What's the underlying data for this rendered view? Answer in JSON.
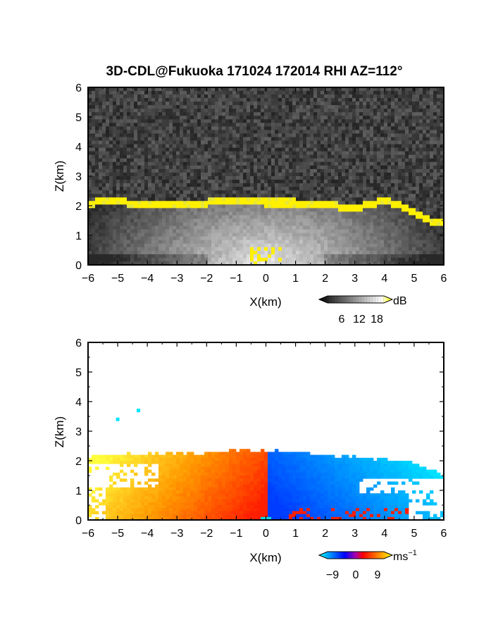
{
  "title": "3D-CDL@Fukuoka 171024 172014 RHI AZ=112°",
  "chart_data": [
    {
      "type": "heatmap",
      "field": "backscatter",
      "xlabel": "X(km)",
      "ylabel": "Z(km)",
      "xlim": [
        -6,
        6
      ],
      "ylim": [
        0,
        6
      ],
      "x_ticks": [
        "-6",
        "-5",
        "-4",
        "-3",
        "-2",
        "-1",
        "0",
        "1",
        "2",
        "3",
        "4",
        "5",
        "6"
      ],
      "y_ticks": [
        "0",
        "1",
        "2",
        "3",
        "4",
        "5",
        "6"
      ],
      "colorbar": {
        "unit": "dB",
        "ticks": [
          "6",
          "12",
          "18"
        ],
        "range": [
          0,
          20
        ],
        "colors": [
          "#000000",
          "#ffffff",
          "#ffff00"
        ]
      },
      "features": {
        "high_return_layer_top_km": [
          [
            -6,
            2.05
          ],
          [
            -5.5,
            2.15
          ],
          [
            -4,
            2.05
          ],
          [
            -2,
            2.1
          ],
          [
            -1,
            2.2
          ],
          [
            0,
            2.1
          ],
          [
            1,
            2.1
          ],
          [
            2,
            2.0
          ],
          [
            3,
            1.95
          ],
          [
            3.5,
            2.0
          ],
          [
            4,
            2.2
          ],
          [
            5,
            1.8
          ],
          [
            5.5,
            1.5
          ],
          [
            6,
            1.45
          ]
        ],
        "near_ground_echo_km": [
          [
            -0.5,
            0.6
          ],
          [
            0.5,
            0.35
          ]
        ]
      }
    },
    {
      "type": "heatmap",
      "field": "radial_velocity",
      "xlabel": "X(km)",
      "ylabel": "Z(km)",
      "xlim": [
        -6,
        6
      ],
      "ylim": [
        0,
        6
      ],
      "x_ticks": [
        "-6",
        "-5",
        "-4",
        "-3",
        "-2",
        "-1",
        "0",
        "1",
        "2",
        "3",
        "4",
        "5",
        "6"
      ],
      "y_ticks": [
        "0",
        "1",
        "2",
        "3",
        "4",
        "5",
        "6"
      ],
      "colorbar": {
        "unit": "ms",
        "unit_sup": "−1",
        "ticks": [
          "−9",
          "0",
          "9"
        ],
        "range": [
          -10,
          10
        ],
        "colors": [
          "#00ffff",
          "#0000ff",
          "#ff0000",
          "#ffff00"
        ]
      },
      "features": {
        "echo_top_km": [
          [
            -6,
            2.15
          ],
          [
            -5,
            2.2
          ],
          [
            -3,
            2.25
          ],
          [
            -1,
            2.35
          ],
          [
            0,
            2.35
          ],
          [
            1,
            2.3
          ],
          [
            2,
            2.2
          ],
          [
            3,
            2.1
          ],
          [
            4,
            2.05
          ],
          [
            5,
            1.9
          ],
          [
            6,
            1.55
          ]
        ],
        "sign_change_x_km": 0.1,
        "isolated_points_km": [
          [
            -4.3,
            3.7
          ],
          [
            -5.0,
            3.4
          ]
        ]
      }
    }
  ]
}
